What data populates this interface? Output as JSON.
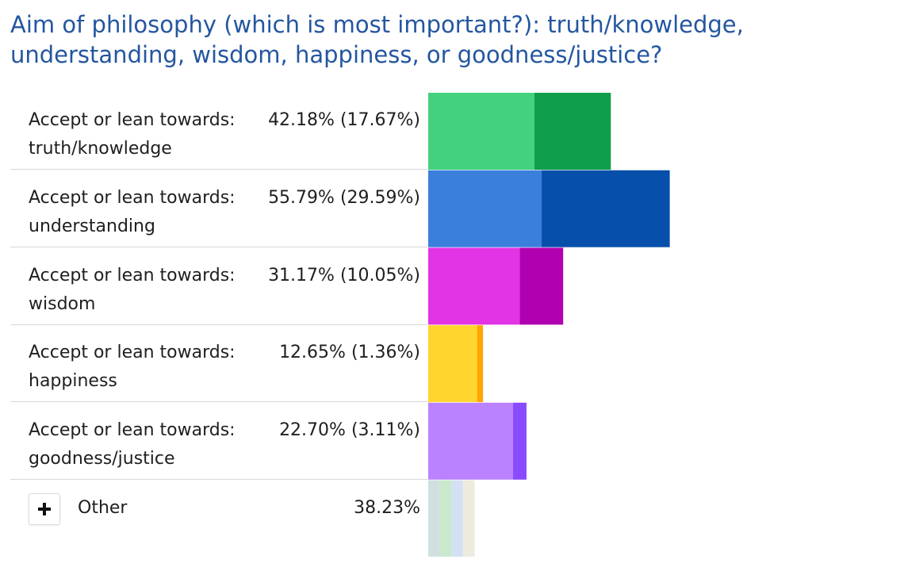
{
  "title": "Aim of philosophy (which is most important?): truth/knowledge, understanding, wisdom, happiness, or goodness/justice?",
  "chart_data": {
    "type": "bar",
    "orientation": "horizontal",
    "stacked": true,
    "rows": [
      {
        "label": "Accept or lean towards: truth/knowledge",
        "display": "42.18% (17.67%)",
        "total": 42.18,
        "strong": 17.67,
        "colors": [
          "#43d17d",
          "#0f9e4a"
        ]
      },
      {
        "label": "Accept or lean towards: understanding",
        "display": "55.79% (29.59%)",
        "total": 55.79,
        "strong": 29.59,
        "colors": [
          "#3a7fdc",
          "#064fab"
        ]
      },
      {
        "label": "Accept or lean towards: wisdom",
        "display": "31.17% (10.05%)",
        "total": 31.17,
        "strong": 10.05,
        "colors": [
          "#e233e4",
          "#b000b0"
        ]
      },
      {
        "label": "Accept or lean towards: happiness",
        "display": "12.65% (1.36%)",
        "total": 12.65,
        "strong": 1.36,
        "colors": [
          "#ffd52e",
          "#ffa600"
        ]
      },
      {
        "label": "Accept or lean towards: goodness/justice",
        "display": "22.70% (3.11%)",
        "total": 22.7,
        "strong": 3.11,
        "colors": [
          "#bb82ff",
          "#8a4bff"
        ]
      }
    ],
    "other": {
      "label": "Other",
      "display": "38.23%",
      "total": 38.23,
      "colors": [
        "#d0e0e0",
        "#c9e8cc",
        "#d4e0f3",
        "#ecebde"
      ]
    }
  }
}
